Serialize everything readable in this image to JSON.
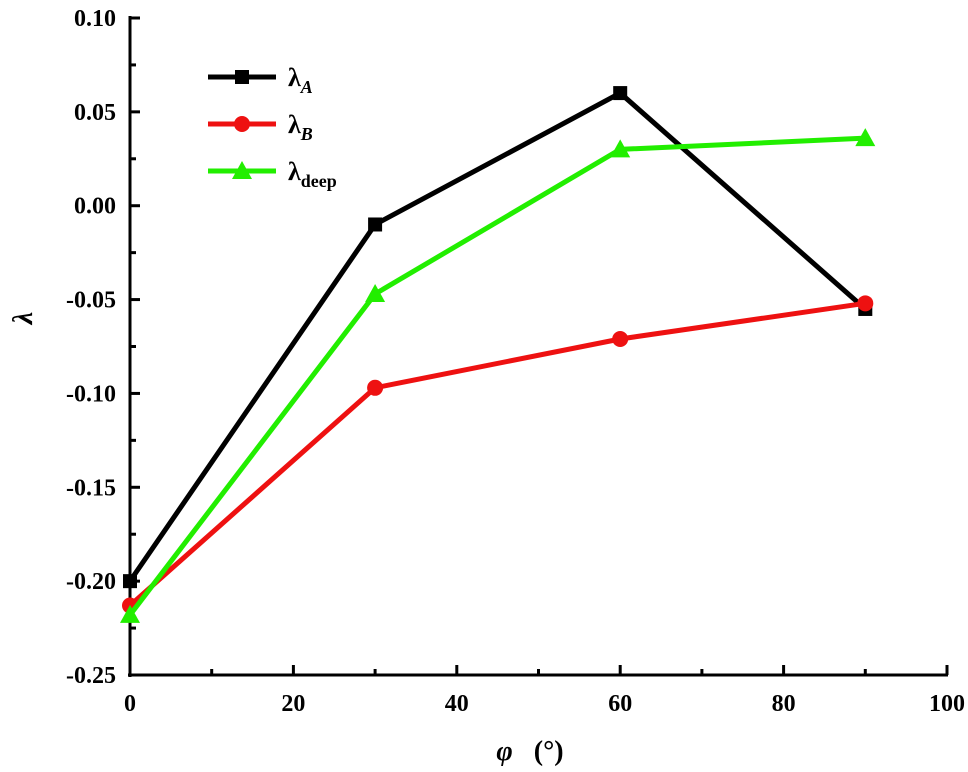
{
  "chart_data": {
    "type": "line",
    "xlabel": "φ",
    "xlabel_unit": "(°)",
    "ylabel": "λ",
    "xlim": [
      0,
      100
    ],
    "ylim": [
      -0.25,
      0.1
    ],
    "xticks": [
      "0",
      "20",
      "40",
      "60",
      "80",
      "100"
    ],
    "yticks": [
      "0.10",
      "0.05",
      "0.00",
      "-0.05",
      "-0.10",
      "-0.15",
      "-0.20",
      "-0.25"
    ],
    "x": [
      0,
      30,
      60,
      90
    ],
    "legend_position": "top-left",
    "grid": false,
    "series": [
      {
        "name_base": "λ",
        "name_sub": "A",
        "sub_italic": true,
        "color": "#000000",
        "marker": "square",
        "values": [
          -0.2,
          -0.01,
          0.06,
          -0.055
        ]
      },
      {
        "name_base": "λ",
        "name_sub": "B",
        "sub_italic": true,
        "color": "#ee1111",
        "marker": "circle",
        "values": [
          -0.213,
          -0.097,
          -0.071,
          -0.052
        ]
      },
      {
        "name_base": "λ",
        "name_sub": "deep",
        "sub_italic": false,
        "color": "#22ee00",
        "marker": "triangle",
        "values": [
          -0.218,
          -0.047,
          0.03,
          0.036
        ]
      }
    ]
  }
}
